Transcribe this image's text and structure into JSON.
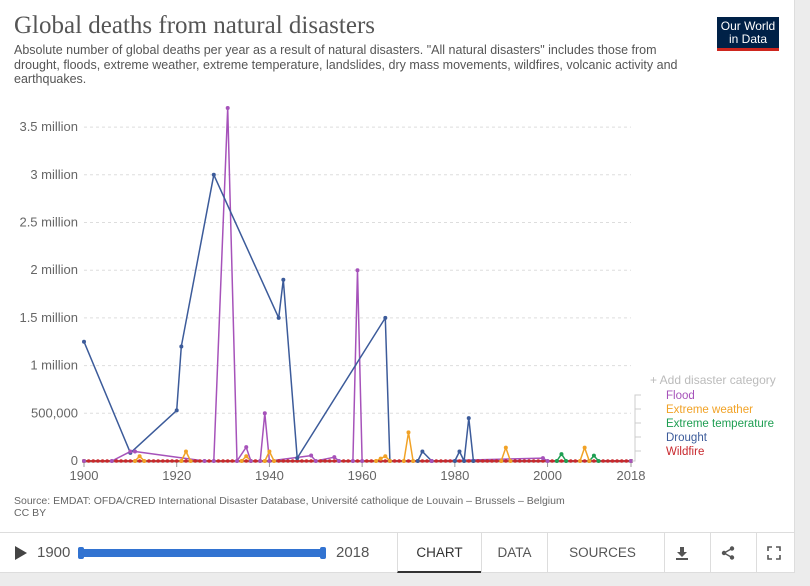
{
  "header": {
    "title": "Global deaths from natural disasters",
    "subtitle": "Absolute number of global deaths per year as a result of natural disasters. \"All natural disasters\" includes those from drought, floods, extreme weather, extreme temperature, landslides, dry mass movements, wildfires, volcanic activity and earthquakes.",
    "logo_line1": "Our World",
    "logo_line2": "in Data"
  },
  "legend": {
    "add_label": "+ Add disaster category",
    "items": [
      {
        "label": "Flood",
        "color": "#a652ba"
      },
      {
        "label": "Extreme weather",
        "color": "#f1a226"
      },
      {
        "label": "Extreme temperature",
        "color": "#1e9e52"
      },
      {
        "label": "Drought",
        "color": "#3c5b9a"
      },
      {
        "label": "Wildfire",
        "color": "#c8282d"
      }
    ]
  },
  "footer": {
    "source": "Source: EMDAT: OFDA/CRED International Disaster Database, Université catholique de Louvain – Brussels – Belgium",
    "license": "CC BY"
  },
  "controls": {
    "start_year": "1900",
    "end_year": "2018",
    "tabs": [
      "CHART",
      "DATA",
      "SOURCES"
    ],
    "active_tab": "CHART",
    "icons": [
      "download-icon",
      "share-icon",
      "fullscreen-icon"
    ]
  },
  "chart_data": {
    "type": "line",
    "ylim": [
      0,
      3700000
    ],
    "xlim": [
      1900,
      2018
    ],
    "yticks": [
      {
        "value": 0,
        "label": "0"
      },
      {
        "value": 500000,
        "label": "500,000"
      },
      {
        "value": 1000000,
        "label": "1 million"
      },
      {
        "value": 1500000,
        "label": "1.5 million"
      },
      {
        "value": 2000000,
        "label": "2 million"
      },
      {
        "value": 2500000,
        "label": "2.5 million"
      },
      {
        "value": 3000000,
        "label": "3 million"
      },
      {
        "value": 3500000,
        "label": "3.5 million"
      }
    ],
    "xticks": [
      "1900",
      "1920",
      "1940",
      "1960",
      "1980",
      "2000",
      "2018"
    ],
    "grid": true,
    "legend_position": "right",
    "series": [
      {
        "name": "Flood",
        "color": "#a652ba",
        "points": [
          [
            1900,
            0
          ],
          [
            1906,
            0
          ],
          [
            1910,
            100000
          ],
          [
            1911,
            100000
          ],
          [
            1926,
            0
          ],
          [
            1928,
            0
          ],
          [
            1931,
            3700000
          ],
          [
            1933,
            0
          ],
          [
            1935,
            145000
          ],
          [
            1936,
            0
          ],
          [
            1938,
            0
          ],
          [
            1939,
            500000
          ],
          [
            1940,
            0
          ],
          [
            1949,
            57000
          ],
          [
            1950,
            0
          ],
          [
            1954,
            40000
          ],
          [
            1955,
            0
          ],
          [
            1958,
            0
          ],
          [
            1959,
            2000000
          ],
          [
            1960,
            0
          ],
          [
            1975,
            0
          ],
          [
            1999,
            30000
          ],
          [
            2000,
            0
          ],
          [
            2018,
            0
          ]
        ]
      },
      {
        "name": "Extreme weather",
        "color": "#f1a226",
        "points": [
          [
            1900,
            0
          ],
          [
            1911,
            0
          ],
          [
            1912,
            50000
          ],
          [
            1913,
            0
          ],
          [
            1921,
            0
          ],
          [
            1922,
            100000
          ],
          [
            1923,
            0
          ],
          [
            1934,
            0
          ],
          [
            1935,
            50000
          ],
          [
            1936,
            0
          ],
          [
            1939,
            0
          ],
          [
            1940,
            100000
          ],
          [
            1941,
            0
          ],
          [
            1963,
            0
          ],
          [
            1964,
            25000
          ],
          [
            1965,
            50000
          ],
          [
            1966,
            0
          ],
          [
            1969,
            0
          ],
          [
            1970,
            300000
          ],
          [
            1971,
            0
          ],
          [
            1990,
            0
          ],
          [
            1991,
            140000
          ],
          [
            1992,
            0
          ],
          [
            2007,
            0
          ],
          [
            2008,
            140000
          ],
          [
            2009,
            0
          ],
          [
            2018,
            0
          ]
        ]
      },
      {
        "name": "Extreme temperature",
        "color": "#1e9e52",
        "points": [
          [
            1900,
            0
          ],
          [
            2002,
            0
          ],
          [
            2003,
            72000
          ],
          [
            2004,
            0
          ],
          [
            2009,
            0
          ],
          [
            2010,
            56000
          ],
          [
            2011,
            0
          ],
          [
            2018,
            0
          ]
        ]
      },
      {
        "name": "Drought",
        "color": "#3c5b9a",
        "points": [
          [
            1900,
            1250000
          ],
          [
            1910,
            85000
          ],
          [
            1920,
            530000
          ],
          [
            1921,
            1200000
          ],
          [
            1928,
            3000000
          ],
          [
            1942,
            1500000
          ],
          [
            1943,
            1900000
          ],
          [
            1946,
            30000
          ],
          [
            1965,
            1500000
          ],
          [
            1966,
            0
          ],
          [
            1972,
            0
          ],
          [
            1973,
            100000
          ],
          [
            1975,
            0
          ],
          [
            1980,
            0
          ],
          [
            1981,
            100000
          ],
          [
            1982,
            0
          ],
          [
            1983,
            450000
          ],
          [
            1984,
            0
          ],
          [
            2018,
            0
          ]
        ]
      },
      {
        "name": "Wildfire",
        "color": "#c8282d",
        "points": [
          [
            1900,
            0
          ],
          [
            2018,
            0
          ]
        ]
      }
    ]
  }
}
